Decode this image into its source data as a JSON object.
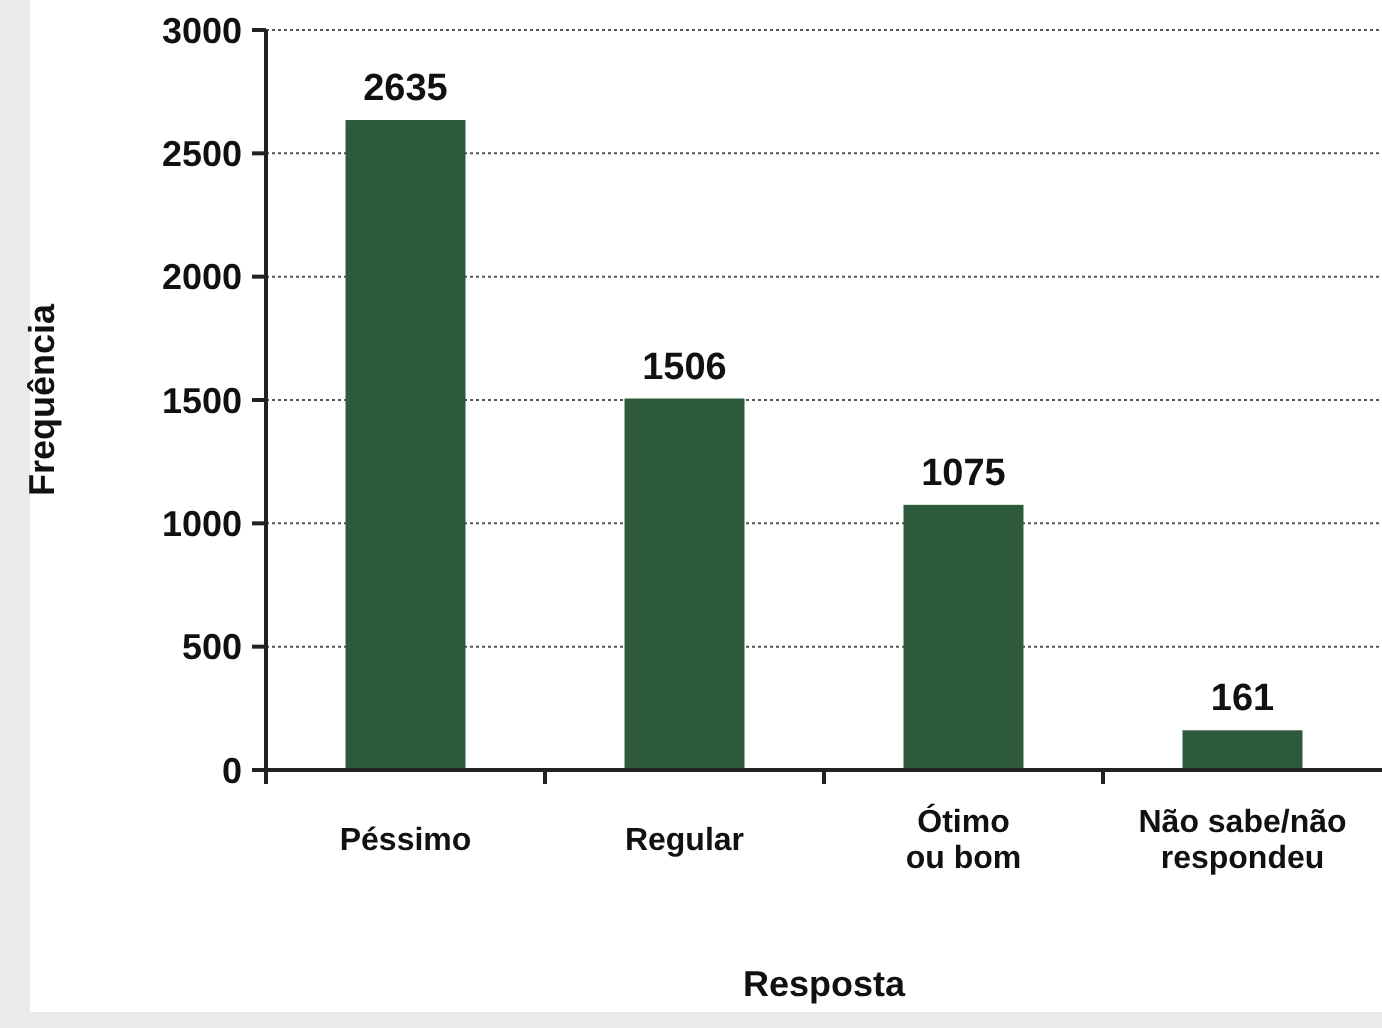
{
  "chart_data": {
    "type": "bar",
    "xlabel": "Resposta",
    "ylabel": "Frequência",
    "categories": [
      "Péssimo",
      "Regular",
      "Ótimo\nou bom",
      "Não sabe/não\nrespondeu"
    ],
    "values": [
      2635,
      1506,
      1075,
      161
    ],
    "color": "#2d5a3a",
    "ylim": [
      0,
      3000
    ],
    "yticks": [
      0,
      500,
      1000,
      1500,
      2000,
      2500,
      3000
    ],
    "grid": "y",
    "data_labels": true
  }
}
